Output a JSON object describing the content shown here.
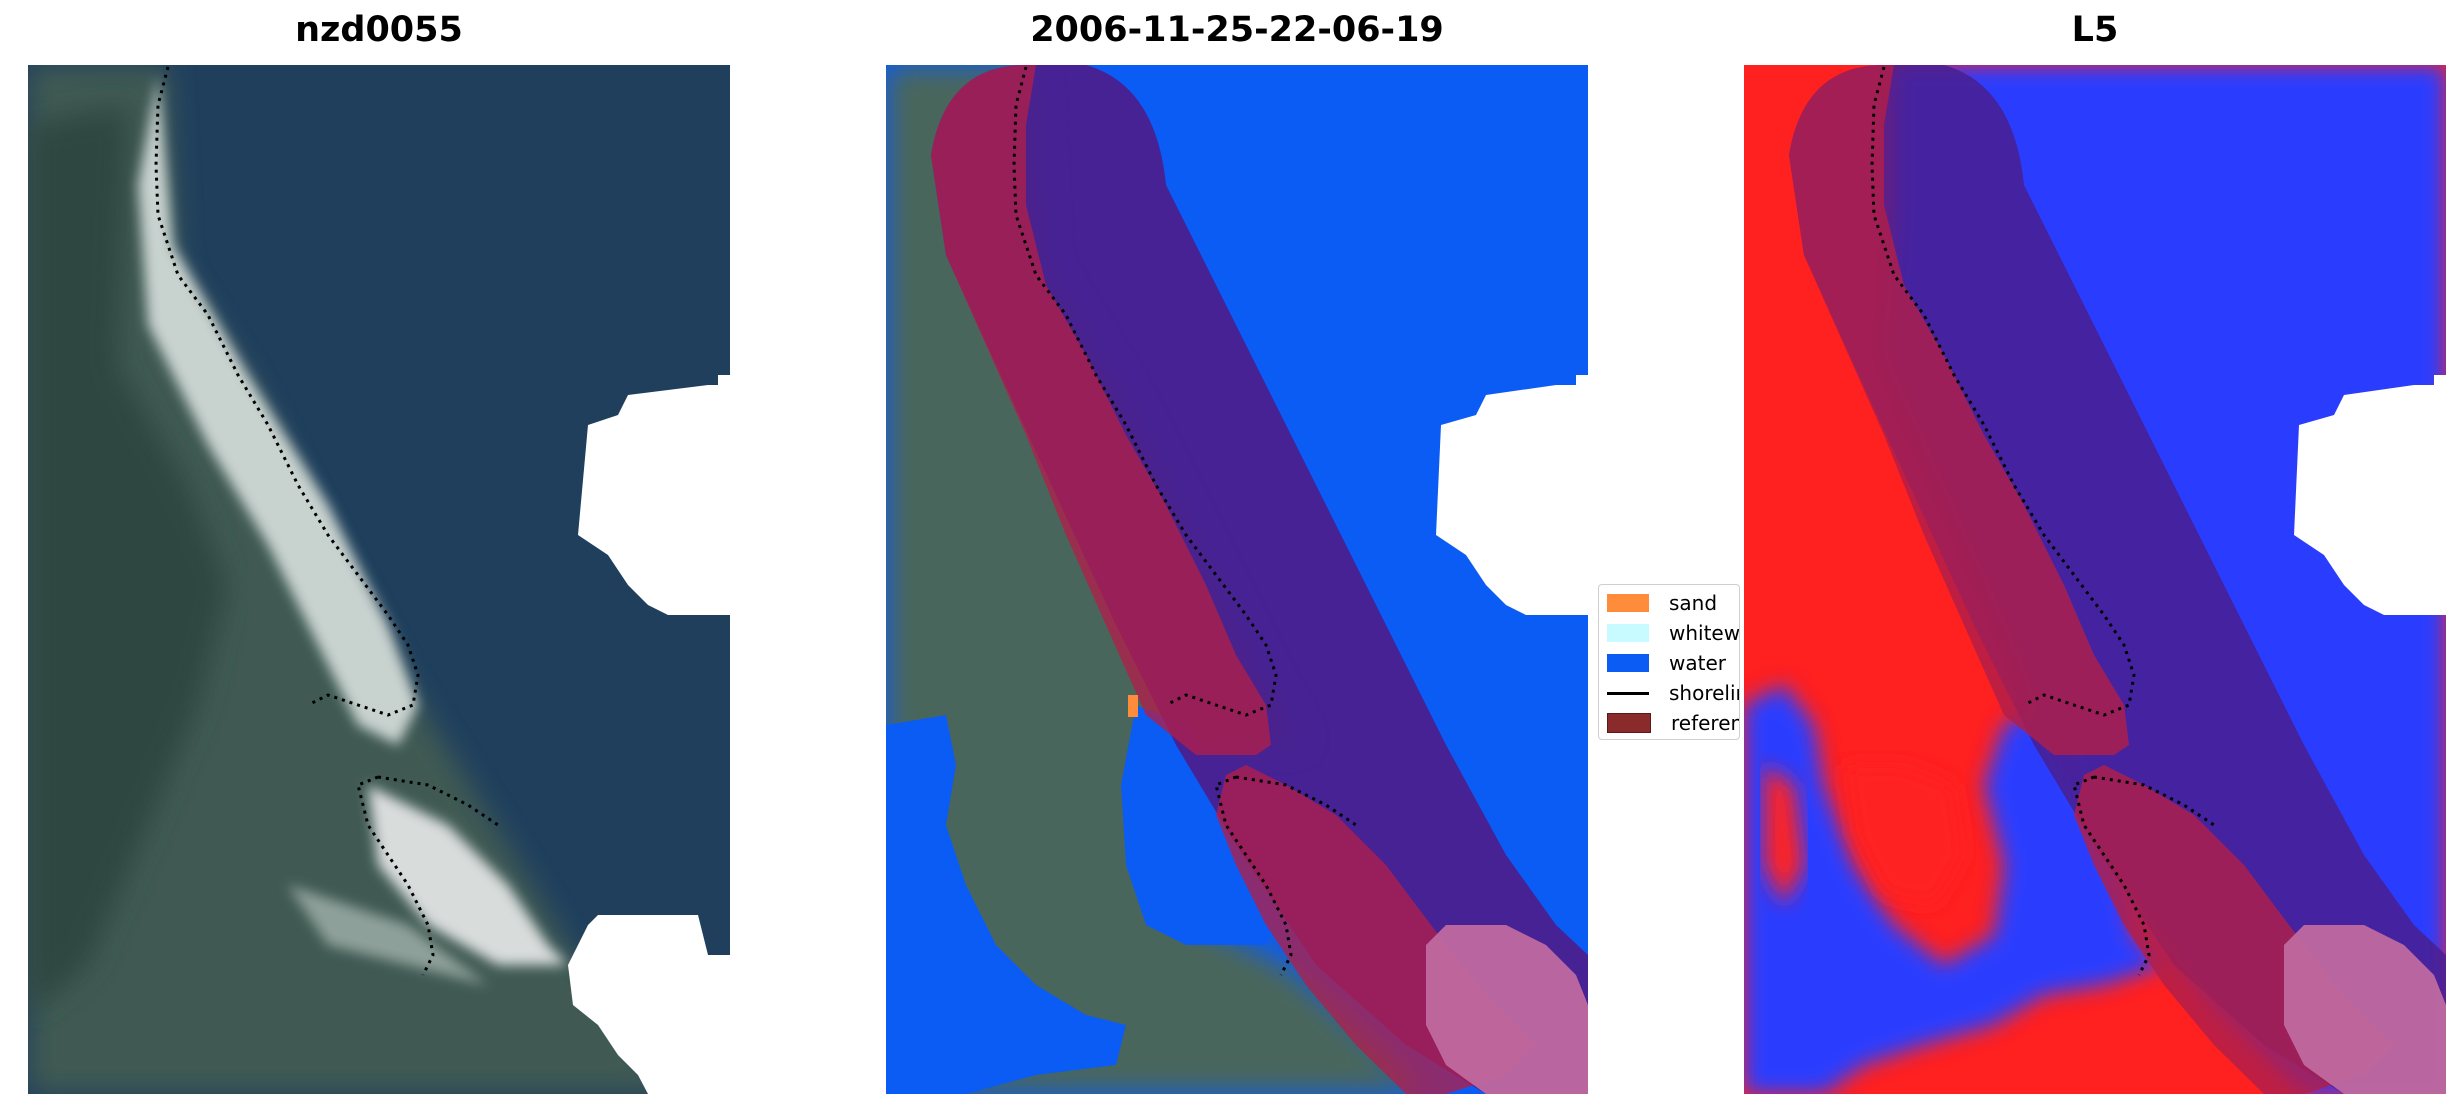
{
  "panels": [
    {
      "title": "nzd0055",
      "content": "RGB satellite image of coastline"
    },
    {
      "title": "2006-11-25-22-06-19",
      "content": "classified image with reference overlay"
    },
    {
      "title": "L5",
      "content": "water index map with reference overlay"
    }
  ],
  "legend": {
    "items": [
      {
        "label": "sand",
        "color": "#ff8c3a",
        "kind": "patch"
      },
      {
        "label": "whitewater",
        "color": "#c8fbff",
        "kind": "patch"
      },
      {
        "label": "water",
        "color": "#0a5cf5",
        "kind": "patch"
      },
      {
        "label": "shoreline",
        "color": "#000000",
        "kind": "line"
      },
      {
        "label": "reference",
        "color": "#8b2a2a",
        "kind": "patch"
      }
    ]
  },
  "colors": {
    "water_class": "#0a5cf5",
    "reference_overlay": "#b01f4a",
    "buffer_overlay": "#4a1f8f",
    "index_water": "#2a3dff",
    "index_land": "#ff2020"
  }
}
